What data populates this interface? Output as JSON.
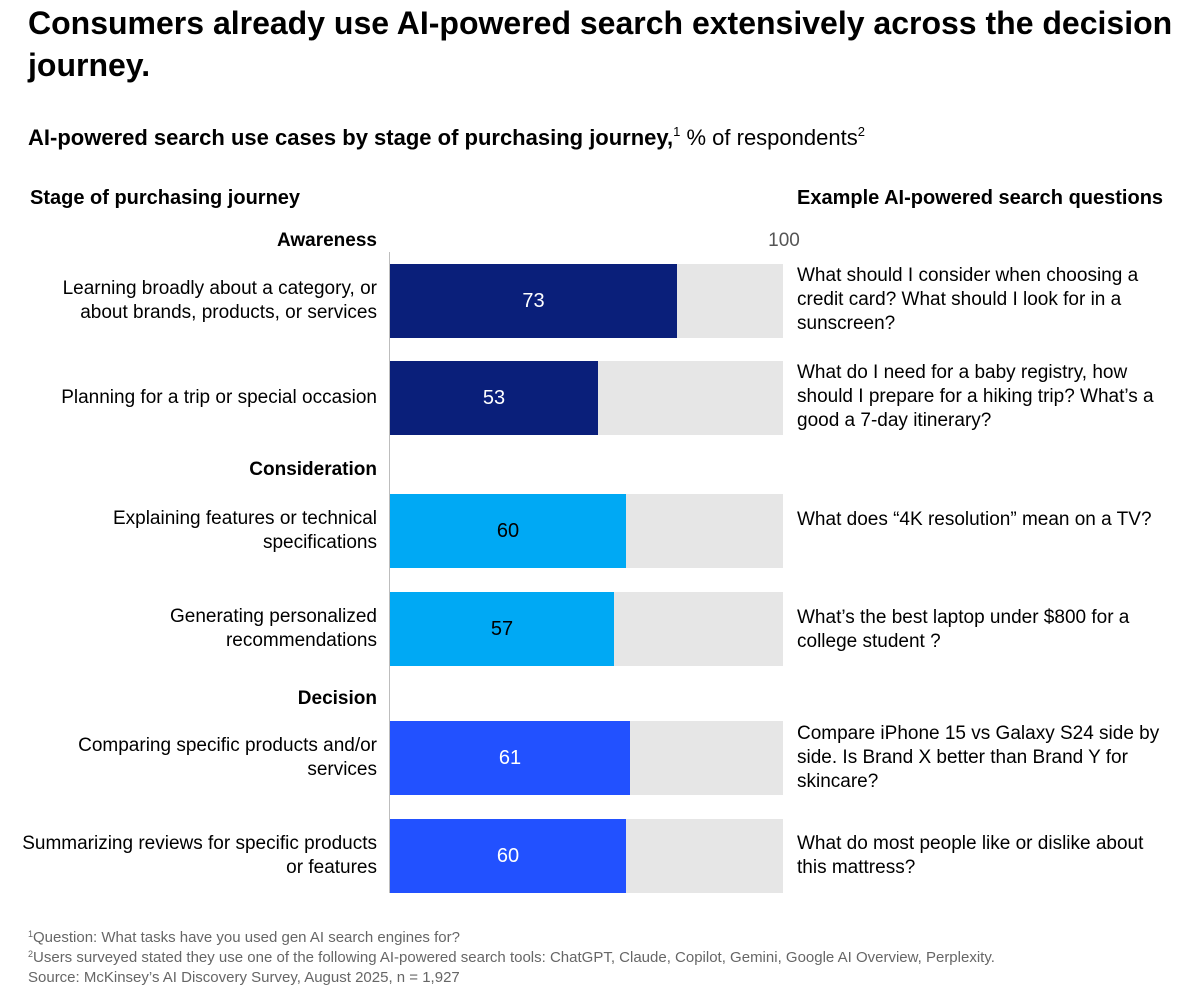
{
  "title": "Consumers already use AI-powered search extensively across the decision journey.",
  "subtitle": {
    "bold": "AI-powered search use cases by stage of purchasing journey,",
    "bold_sup": "1",
    "light": " % of respondents",
    "light_sup": "2"
  },
  "headers": {
    "left": "Stage of purchasing journey",
    "right": "Example AI-powered search questions"
  },
  "colors": {
    "awareness": "#0a1f7a",
    "consideration": "#00a9f4",
    "decision": "#2251ff",
    "track": "#e6e6e6"
  },
  "chart_data": {
    "type": "bar",
    "orientation": "horizontal",
    "xlim": [
      0,
      100
    ],
    "scale_label": "100",
    "groups": [
      {
        "name": "Awareness",
        "categories": [
          "Learning broadly about a category, or about brands, products, or services",
          "Planning for a trip or special occasion"
        ]
      },
      {
        "name": "Consideration",
        "categories": [
          "Explaining features or technical specifications",
          "Generating personalized recommendations"
        ]
      },
      {
        "name": "Decision",
        "categories": [
          "Comparing specific products and/or services",
          "Summarizing reviews for specific products or features"
        ]
      }
    ],
    "categories": [
      "Learning broadly about a category, or about brands, products, or services",
      "Planning for a trip or special occasion",
      "Explaining features or technical specifications",
      "Generating personalized recommendations",
      "Comparing specific products and/or services",
      "Summarizing reviews for specific products or features"
    ],
    "values": [
      73,
      53,
      60,
      57,
      61,
      60
    ],
    "examples": [
      "What should I consider when choosing a credit card? What should I look for in a sunscreen?",
      "What do I need for a baby registry, how should I prepare for a hiking trip? What’s a good a 7-day itinerary?",
      "What does “4K resolution” mean on a TV?",
      "What’s the best laptop under $800 for a college student ?",
      "Compare iPhone 15 vs Galaxy S24 side by side. Is Brand X better than Brand Y for skincare?",
      "What do most people like or dislike about this mattress?"
    ]
  },
  "footnotes": [
    {
      "sup": "1",
      "text": "Question: What tasks have you used gen AI search engines for?"
    },
    {
      "sup": "2",
      "text": "Users surveyed stated they use one of the following AI-powered search tools: ChatGPT, Claude, Copilot, Gemini, Google AI Overview, Perplexity."
    },
    {
      "sup": "",
      "text": " Source: McKinsey’s AI Discovery Survey, August 2025, n = 1,927"
    }
  ]
}
